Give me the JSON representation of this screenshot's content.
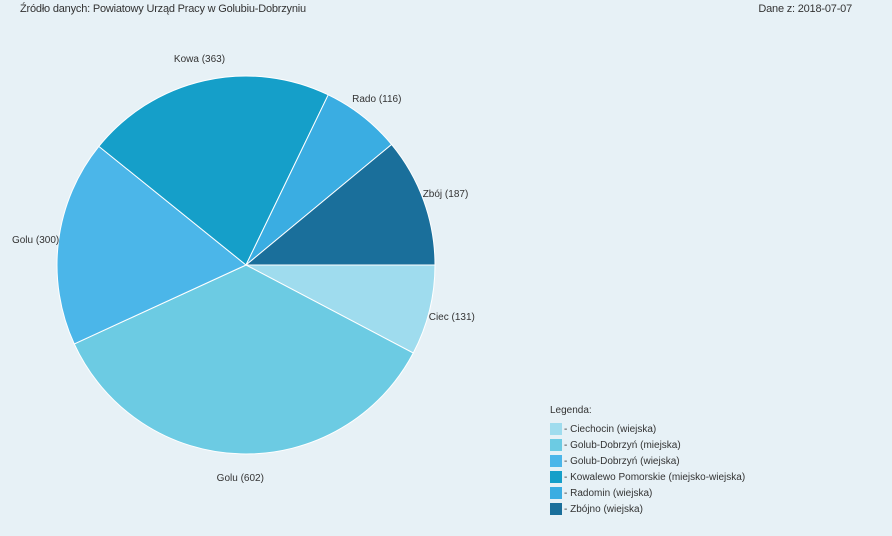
{
  "header": {
    "source": "Źródło danych: Powiatowy Urząd Pracy w Golubiu-Dobrzyniu",
    "date": "Dane z: 2018-07-07"
  },
  "chart_data": {
    "type": "pie",
    "slices": [
      {
        "label": "Ciec (131)",
        "legend": "- Ciechocin (wiejska)",
        "value": 131,
        "color": "#9fdcee"
      },
      {
        "label": "Golu (602)",
        "legend": "- Golub-Dobrzyń (miejska)",
        "value": 602,
        "color": "#6ccbe3"
      },
      {
        "label": "Golu (300)",
        "legend": "- Golub-Dobrzyń (wiejska)",
        "value": 300,
        "color": "#4bb6e9"
      },
      {
        "label": "Kowa (363)",
        "legend": "- Kowalewo Pomorskie (miejsko-wiejska)",
        "value": 363,
        "color": "#159fc9"
      },
      {
        "label": "Rado (116)",
        "legend": "- Radomin (wiejska)",
        "value": 116,
        "color": "#3aade2"
      },
      {
        "label": "Zbój (187)",
        "legend": "- Zbójno (wiejska)",
        "value": 187,
        "color": "#1a6f9b"
      }
    ],
    "legend_title": "Legenda:",
    "legend_position": "bottom-right"
  }
}
